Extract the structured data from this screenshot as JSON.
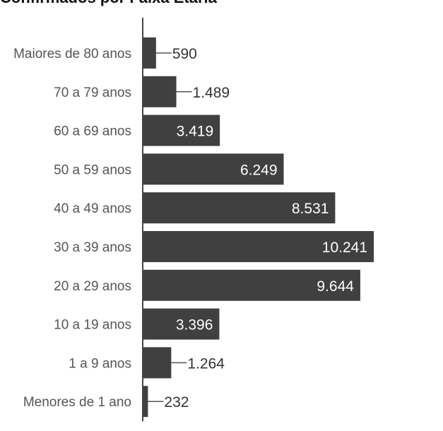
{
  "chart_data": {
    "type": "bar",
    "orientation": "horizontal",
    "title": "Confirmados por Faixa Etária",
    "xlabel": "",
    "ylabel": "",
    "categories": [
      "Maiores de 80 anos",
      "70 a 79 anos",
      "60 a 69 anos",
      "50 a 59 anos",
      "40 a 49 anos",
      "30 a 39 anos",
      "20 a 29 anos",
      "10 a 19 anos",
      "1 a 9 anos",
      "Menores de 1 ano"
    ],
    "values": [
      590,
      1489,
      3419,
      6249,
      8531,
      10241,
      9644,
      3396,
      1264,
      232
    ],
    "value_labels": [
      "590",
      "1.489",
      "3.419",
      "6.249",
      "8.531",
      "10.241",
      "9.644",
      "3.396",
      "1.264",
      "232"
    ],
    "grid": false,
    "legend": "none"
  },
  "colors": {
    "bar": "#404040",
    "axis": "#444444",
    "category_text": "#555555",
    "label_inside": "#ffffff",
    "label_outside": "#333333",
    "leader_line": "#555555"
  }
}
